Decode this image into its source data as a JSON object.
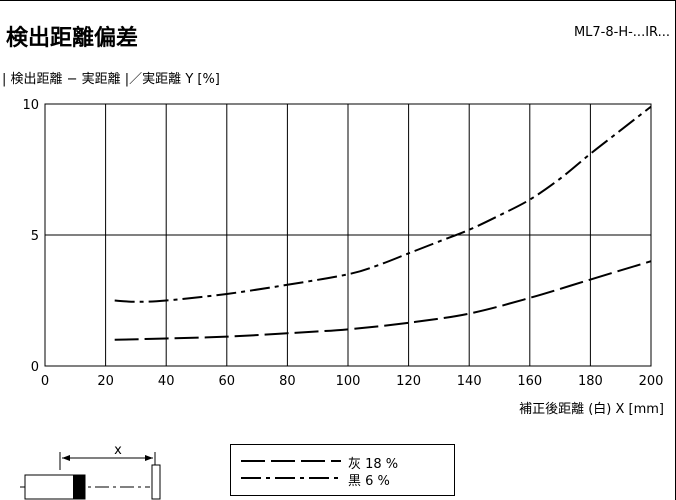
{
  "header": {
    "title": "検出距離偏差",
    "model": "ML7-8-H-...IR..."
  },
  "chart_data": {
    "type": "line",
    "title": "検出距離偏差",
    "ylabel": "| 検出距離 − 実距離 |／実距離 Y [%]",
    "xlabel": "補正後距離 (白) X [mm]",
    "xlim": [
      0,
      200
    ],
    "ylim": [
      0,
      10
    ],
    "x_ticks": [
      0,
      20,
      40,
      60,
      80,
      100,
      120,
      140,
      160,
      180,
      200
    ],
    "y_ticks": [
      0,
      5,
      10
    ],
    "grid": true,
    "legend_position": "bottom-center",
    "series": [
      {
        "name": "灰 18 %",
        "style": "dash-dash",
        "x": [
          23,
          40,
          60,
          80,
          100,
          120,
          140,
          160,
          180,
          200
        ],
        "y": [
          1.0,
          1.05,
          1.12,
          1.25,
          1.4,
          1.65,
          2.0,
          2.6,
          3.3,
          4.0
        ]
      },
      {
        "name": "黒 6 %",
        "style": "dash-dot",
        "x": [
          23,
          30,
          40,
          60,
          80,
          100,
          110,
          120,
          130,
          140,
          150,
          160,
          170,
          180,
          190,
          200
        ],
        "y": [
          2.5,
          2.45,
          2.5,
          2.75,
          3.1,
          3.5,
          3.85,
          4.3,
          4.75,
          5.2,
          5.75,
          6.35,
          7.15,
          8.1,
          9.0,
          9.9
        ]
      }
    ]
  },
  "diagram": {
    "x_label": "x"
  }
}
